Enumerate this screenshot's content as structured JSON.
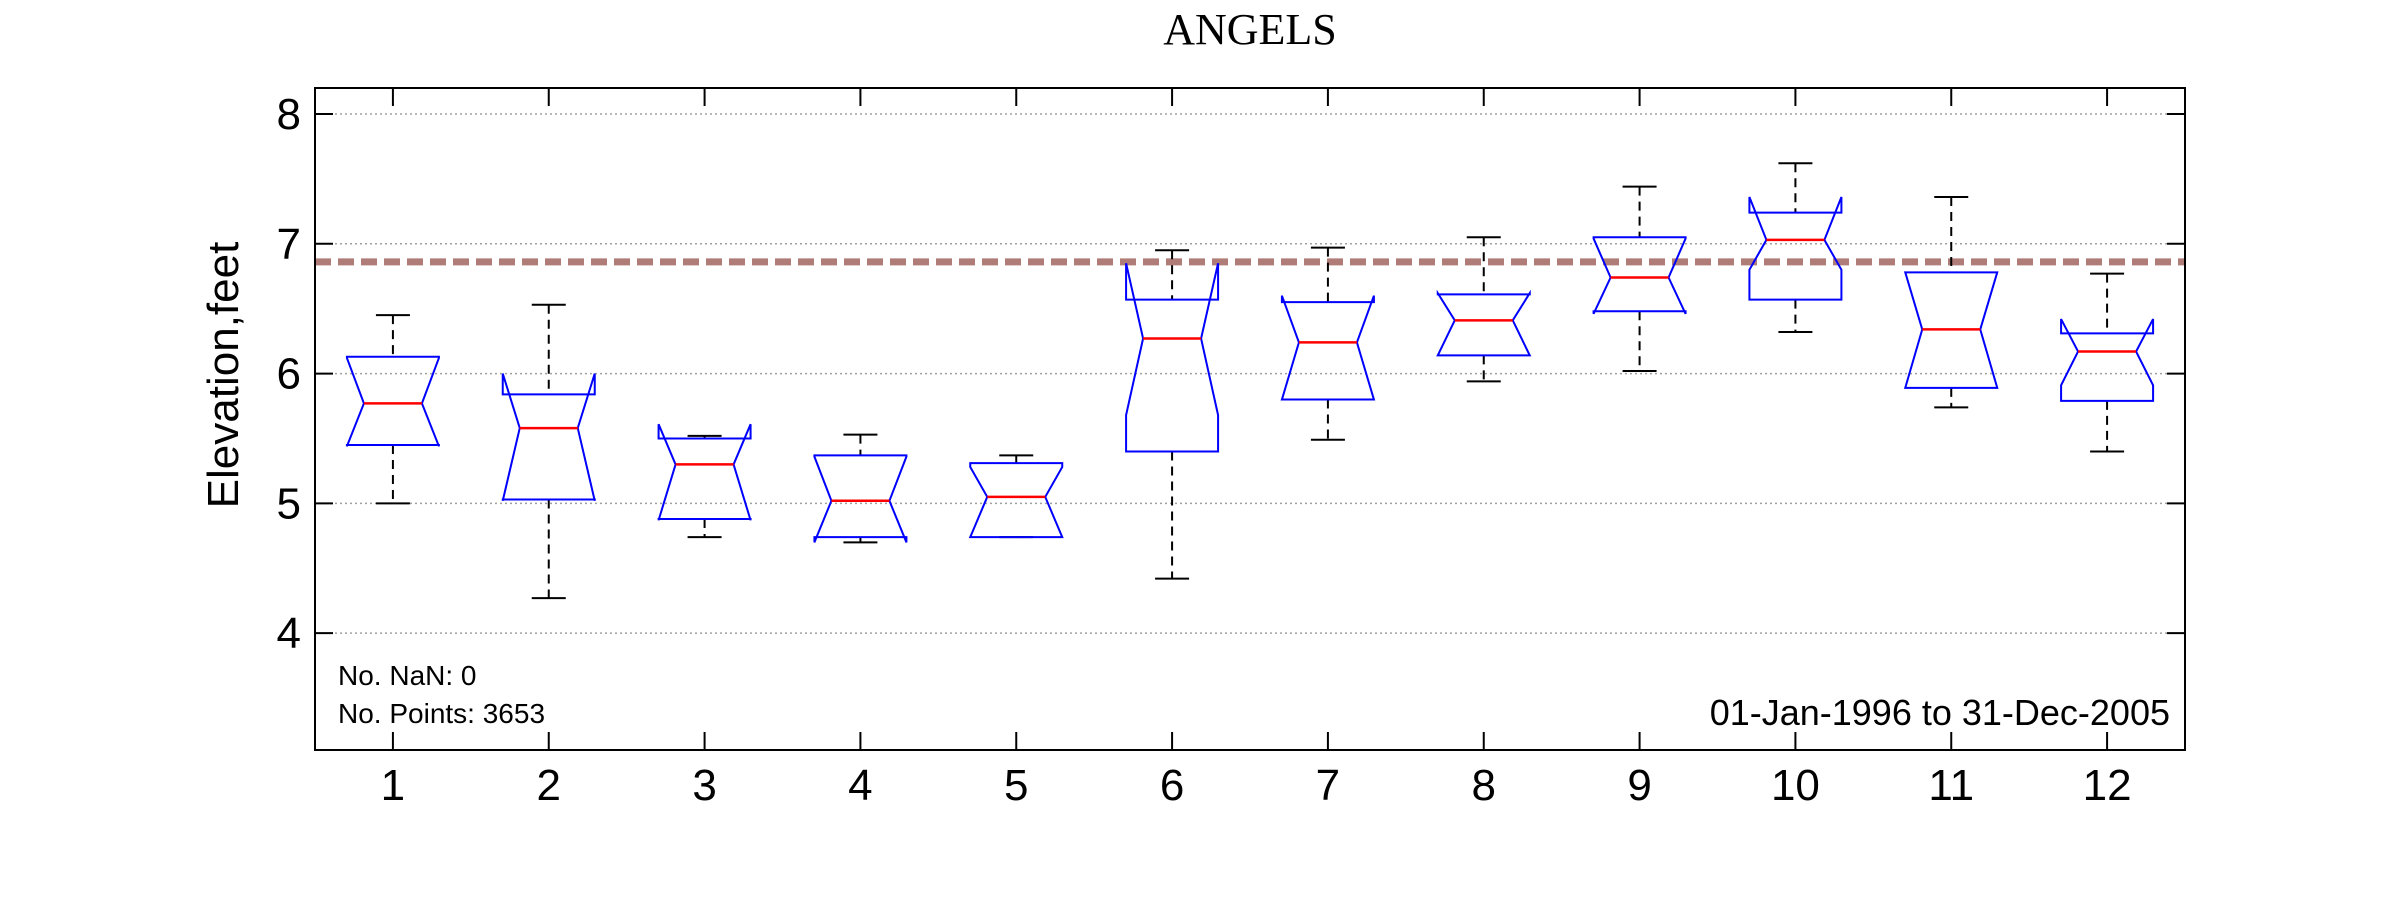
{
  "chart_data": {
    "type": "boxplot",
    "title": "ANGELS",
    "xlabel": "",
    "ylabel": "Elevation,feet",
    "ylim": [
      3.1,
      8.2
    ],
    "yticks": [
      4,
      5,
      6,
      7,
      8
    ],
    "categories": [
      "1",
      "2",
      "3",
      "4",
      "5",
      "6",
      "7",
      "8",
      "9",
      "10",
      "11",
      "12"
    ],
    "boxes": [
      {
        "month": "1",
        "whisker_low": 5.0,
        "q1": 5.45,
        "median": 5.77,
        "q3": 6.13,
        "whisker_high": 6.45,
        "notch_low": 5.44,
        "notch_high": 6.12
      },
      {
        "month": "2",
        "whisker_low": 4.27,
        "q1": 5.03,
        "median": 5.58,
        "q3": 5.84,
        "whisker_high": 6.53,
        "notch_low": 5.02,
        "notch_high": 6.0
      },
      {
        "month": "3",
        "whisker_low": 4.74,
        "q1": 4.88,
        "median": 5.3,
        "q3": 5.5,
        "whisker_high": 5.52,
        "notch_low": 4.87,
        "notch_high": 5.61
      },
      {
        "month": "4",
        "whisker_low": 4.7,
        "q1": 4.74,
        "median": 5.02,
        "q3": 5.37,
        "whisker_high": 5.53,
        "notch_low": 4.7,
        "notch_high": 5.36
      },
      {
        "month": "5",
        "whisker_low": 4.74,
        "q1": 4.74,
        "median": 5.05,
        "q3": 5.31,
        "whisker_high": 5.37,
        "notch_low": 4.74,
        "notch_high": 5.28
      },
      {
        "month": "6",
        "whisker_low": 4.42,
        "q1": 5.4,
        "median": 6.27,
        "q3": 6.57,
        "whisker_high": 6.95,
        "notch_low": 5.68,
        "notch_high": 6.85
      },
      {
        "month": "7",
        "whisker_low": 5.49,
        "q1": 5.8,
        "median": 6.24,
        "q3": 6.55,
        "whisker_high": 6.97,
        "notch_low": 5.8,
        "notch_high": 6.6
      },
      {
        "month": "8",
        "whisker_low": 5.94,
        "q1": 6.14,
        "median": 6.41,
        "q3": 6.61,
        "whisker_high": 7.05,
        "notch_low": 6.14,
        "notch_high": 6.62
      },
      {
        "month": "9",
        "whisker_low": 6.02,
        "q1": 6.48,
        "median": 6.74,
        "q3": 7.05,
        "whisker_high": 7.44,
        "notch_low": 6.46,
        "notch_high": 7.04
      },
      {
        "month": "10",
        "whisker_low": 6.32,
        "q1": 6.57,
        "median": 7.03,
        "q3": 7.24,
        "whisker_high": 7.62,
        "notch_low": 6.8,
        "notch_high": 7.36
      },
      {
        "month": "11",
        "whisker_low": 5.74,
        "q1": 5.89,
        "median": 6.34,
        "q3": 6.78,
        "whisker_high": 7.36,
        "notch_low": 5.89,
        "notch_high": 6.78
      },
      {
        "month": "12",
        "whisker_low": 5.4,
        "q1": 5.79,
        "median": 6.17,
        "q3": 6.31,
        "whisker_high": 6.77,
        "notch_low": 5.91,
        "notch_high": 6.42
      }
    ],
    "reference_line": {
      "value": 6.86,
      "color": "#b07c78",
      "style": "dashed"
    },
    "colors": {
      "box": "#0000ff",
      "median": "#ff0000",
      "whisker": "#000000",
      "grid": "#a0a0a0"
    },
    "grid": true,
    "notes": [
      "No. NaN: 0",
      "No. Points: 3653"
    ],
    "date_range": "01-Jan-1996 to 31-Dec-2005"
  }
}
